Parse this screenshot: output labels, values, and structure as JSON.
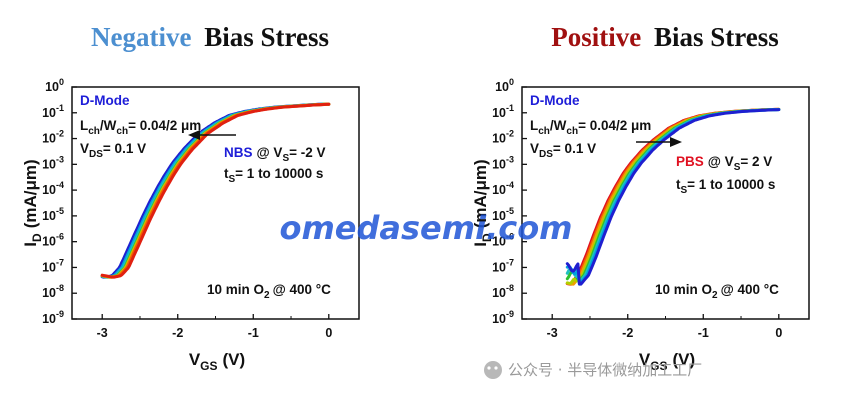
{
  "watermark": "omedasemi.com",
  "source_label": "公众号 · 半导体微纳加工工厂",
  "colors": {
    "negative_word": "#4c8fd0",
    "positive_word": "#a01010",
    "dmode": "#1d1dd8",
    "nbs": "#1d1dd8",
    "pbs": "#e01020"
  },
  "chart_data": [
    {
      "type": "line",
      "title_highlight": "Negative",
      "title_rest": "Bias Stress",
      "xlabel": "V",
      "xlabel_sub": "GS",
      "xlabel_unit": "(V)",
      "ylabel": "I",
      "ylabel_sub": "D",
      "ylabel_unit": "(mA/μm)",
      "xlim": [
        -3.4,
        0.4
      ],
      "ylim_log10": [
        -9,
        0
      ],
      "x_ticks": [
        -3,
        -2,
        -1,
        0
      ],
      "x_tick_labels": [
        "-3",
        "-2",
        "-1",
        "0"
      ],
      "y_ticks": [
        0,
        -1,
        -2,
        -3,
        -4,
        -5,
        -6,
        -7,
        -8,
        -9
      ],
      "y_tick_base": "10",
      "annotations": {
        "mode": "D-Mode",
        "geom_L": "L",
        "geom_L_sub": "ch",
        "geom_W": "/W",
        "geom_W_sub": "ch",
        "geom_val": "= 0.04/2 μm",
        "vds_V": "V",
        "vds_sub": "DS",
        "vds_val": "= 0.1 V",
        "stress_name": "NBS",
        "stress_at": "@ V",
        "stress_sub": "S",
        "stress_val": "= -2 V",
        "ts_t": "t",
        "ts_sub": "S",
        "ts_val": "= 1 to 10000 s",
        "anneal_a": "10 min O",
        "anneal_sub": "2",
        "anneal_b": "@ 400 °C"
      },
      "arrow_direction": "left",
      "series": [
        {
          "color": "#1f1fd0",
          "v_shift": -0.12,
          "floor_log10": -7.65,
          "fill": "#5a1fe0"
        },
        {
          "color": "#00a0e0",
          "v_shift": -0.09
        },
        {
          "color": "#20c0c0",
          "v_shift": -0.07
        },
        {
          "color": "#30c030",
          "v_shift": -0.05
        },
        {
          "color": "#b0d000",
          "v_shift": -0.04
        },
        {
          "color": "#f0a000",
          "v_shift": -0.03
        },
        {
          "color": "#f06000",
          "v_shift": -0.02
        },
        {
          "color": "#e02010",
          "v_shift": 0.0
        }
      ],
      "base_curve": {
        "vgs": [
          -3.0,
          -2.85,
          -2.75,
          -2.65,
          -2.55,
          -2.45,
          -2.35,
          -2.25,
          -2.15,
          -2.05,
          -1.95,
          -1.8,
          -1.6,
          -1.4,
          -1.2,
          -1.0,
          -0.8,
          -0.6,
          -0.4,
          -0.2,
          0.0
        ],
        "log10_id": [
          -7.3,
          -7.38,
          -7.32,
          -7.0,
          -6.35,
          -5.7,
          -5.05,
          -4.45,
          -3.9,
          -3.4,
          -2.95,
          -2.4,
          -1.8,
          -1.4,
          -1.1,
          -0.95,
          -0.85,
          -0.78,
          -0.74,
          -0.7,
          -0.67
        ]
      }
    },
    {
      "type": "line",
      "title_highlight": "Positive",
      "title_rest": "Bias Stress",
      "xlabel": "V",
      "xlabel_sub": "GS",
      "xlabel_unit": "(V)",
      "ylabel": "I",
      "ylabel_sub": "D",
      "ylabel_unit": "(mA/μm)",
      "xlim": [
        -3.4,
        0.4
      ],
      "ylim_log10": [
        -9,
        0
      ],
      "x_ticks": [
        -3,
        -2,
        -1,
        0
      ],
      "x_tick_labels": [
        "-3",
        "-2",
        "-1",
        "0"
      ],
      "y_ticks": [
        0,
        -1,
        -2,
        -3,
        -4,
        -5,
        -6,
        -7,
        -8,
        -9
      ],
      "y_tick_base": "10",
      "annotations": {
        "mode": "D-Mode",
        "geom_L": "L",
        "geom_L_sub": "ch",
        "geom_W": "/W",
        "geom_W_sub": "ch",
        "geom_val": "= 0.04/2 μm",
        "vds_V": "V",
        "vds_sub": "DS",
        "vds_val": "= 0.1 V",
        "stress_name": "PBS",
        "stress_at": "@ V",
        "stress_sub": "S",
        "stress_val": "= 2 V",
        "ts_t": "t",
        "ts_sub": "S",
        "ts_val": "= 1 to 10000 s",
        "anneal_a": "10 min O",
        "anneal_sub": "2",
        "anneal_b": "@ 400 °C"
      },
      "arrow_direction": "right",
      "series": [
        {
          "color": "#e01020",
          "v_shift": -0.06,
          "floor_log10": -8.2
        },
        {
          "color": "#f06000",
          "v_shift": -0.04,
          "floor_log10": -8.0
        },
        {
          "color": "#f0a000",
          "v_shift": -0.02,
          "floor_log10": -7.8
        },
        {
          "color": "#b0d000",
          "v_shift": 0.0,
          "floor_log10": -7.6
        },
        {
          "color": "#30c030",
          "v_shift": 0.02,
          "floor_log10": -7.3
        },
        {
          "color": "#20c0c0",
          "v_shift": 0.04,
          "floor_log10": -7.2
        },
        {
          "color": "#00a0e0",
          "v_shift": 0.06,
          "floor_log10": -7.1
        },
        {
          "color": "#1f1fd0",
          "v_shift": 0.08,
          "floor_log10": -7.0
        }
      ],
      "base_curve": {
        "vgs": [
          -2.8,
          -2.7,
          -2.6,
          -2.5,
          -2.4,
          -2.3,
          -2.2,
          -2.1,
          -2.0,
          -1.9,
          -1.75,
          -1.6,
          -1.4,
          -1.2,
          -1.0,
          -0.8,
          -0.6,
          -0.4,
          -0.2,
          0.0
        ],
        "log10_id": [
          -7.6,
          -7.65,
          -7.3,
          -6.6,
          -5.8,
          -5.05,
          -4.4,
          -3.85,
          -3.35,
          -2.95,
          -2.45,
          -2.05,
          -1.6,
          -1.3,
          -1.12,
          -1.02,
          -0.96,
          -0.92,
          -0.89,
          -0.87
        ]
      }
    }
  ]
}
